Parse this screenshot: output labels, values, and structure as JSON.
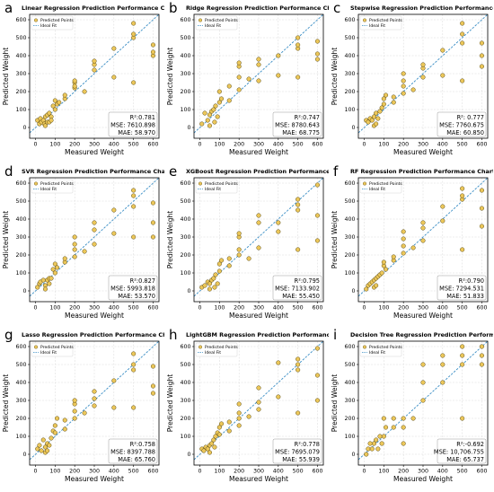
{
  "axis_labels": {
    "x": "Measured Weight",
    "y": "Predicted Weight"
  },
  "legend": {
    "points": "Predicted Points",
    "fit": "Ideal Fit"
  },
  "colors": {
    "points": "#ecc75a",
    "point_edge": "#5a4a10",
    "fit": "#3a8ec5",
    "grid": "#d9d9d9"
  },
  "chart_data": [
    {
      "id": "a",
      "type": "scatter",
      "title": "Linear Regression Prediction Performance Chart",
      "r2": "R²:0.781",
      "mse": "MSE: 7610.898",
      "mae": "MAE: 58.970",
      "xlim": [
        -30,
        630
      ],
      "ylim": [
        -60,
        630
      ],
      "xticks": [
        0,
        100,
        200,
        300,
        400,
        500,
        600
      ],
      "yticks": [
        0,
        100,
        200,
        300,
        400,
        500,
        600
      ],
      "x": [
        10,
        20,
        25,
        30,
        40,
        45,
        50,
        50,
        60,
        60,
        70,
        70,
        80,
        80,
        90,
        100,
        100,
        110,
        120,
        150,
        150,
        200,
        200,
        200,
        200,
        250,
        300,
        300,
        300,
        400,
        400,
        500,
        500,
        500,
        500,
        600,
        600,
        600
      ],
      "y": [
        40,
        20,
        50,
        30,
        40,
        20,
        60,
        10,
        70,
        30,
        80,
        30,
        60,
        40,
        120,
        100,
        150,
        130,
        140,
        160,
        180,
        220,
        250,
        230,
        260,
        200,
        320,
        350,
        370,
        440,
        280,
        500,
        520,
        580,
        250,
        460,
        400,
        420
      ]
    },
    {
      "id": "b",
      "type": "scatter",
      "title": "Ridge Regression Prediction Performance Chart",
      "r2": "R²:0.747",
      "mse": "MSE: 8780.643",
      "mae": "MAE: 68.775",
      "xlim": [
        -30,
        630
      ],
      "ylim": [
        -60,
        630
      ],
      "xticks": [
        0,
        100,
        200,
        300,
        400,
        500,
        600
      ],
      "yticks": [
        0,
        100,
        200,
        300,
        400,
        500,
        600
      ],
      "x": [
        10,
        25,
        40,
        50,
        50,
        60,
        70,
        75,
        80,
        90,
        100,
        100,
        110,
        150,
        150,
        200,
        200,
        200,
        200,
        250,
        300,
        300,
        300,
        400,
        400,
        500,
        500,
        500,
        500,
        600,
        600,
        600
      ],
      "y": [
        20,
        80,
        40,
        70,
        10,
        90,
        100,
        30,
        120,
        60,
        140,
        200,
        160,
        150,
        230,
        210,
        280,
        340,
        360,
        270,
        260,
        350,
        380,
        400,
        290,
        280,
        440,
        460,
        500,
        480,
        380,
        410
      ]
    },
    {
      "id": "c",
      "type": "scatter",
      "title": "Stepwise Regression Prediction Performance Chart",
      "r2": "R²: 0.777",
      "mse": "MSE: 7760.675",
      "mae": "MAE: 60.850",
      "xlim": [
        -30,
        630
      ],
      "ylim": [
        -60,
        630
      ],
      "xticks": [
        0,
        100,
        200,
        300,
        400,
        500,
        600
      ],
      "yticks": [
        0,
        100,
        200,
        300,
        400,
        500,
        600
      ],
      "x": [
        10,
        20,
        30,
        40,
        50,
        50,
        60,
        60,
        70,
        80,
        90,
        100,
        100,
        110,
        150,
        150,
        200,
        200,
        200,
        200,
        250,
        300,
        300,
        300,
        400,
        400,
        500,
        500,
        500,
        500,
        600,
        600,
        600
      ],
      "y": [
        40,
        30,
        50,
        40,
        60,
        10,
        80,
        20,
        50,
        90,
        110,
        130,
        160,
        180,
        140,
        170,
        190,
        230,
        260,
        300,
        210,
        280,
        330,
        350,
        430,
        290,
        260,
        470,
        520,
        580,
        470,
        400,
        340
      ]
    },
    {
      "id": "d",
      "type": "scatter",
      "title": "SVR Regression Prediction Performance Chart",
      "r2": "R²:0.827",
      "mse": "MSE: 5993.818",
      "mae": "MAE: 53.570",
      "xlim": [
        -30,
        630
      ],
      "ylim": [
        -60,
        630
      ],
      "xticks": [
        0,
        100,
        200,
        300,
        400,
        500,
        600
      ],
      "yticks": [
        0,
        100,
        200,
        300,
        400,
        500,
        600
      ],
      "x": [
        10,
        20,
        25,
        40,
        50,
        50,
        60,
        70,
        70,
        80,
        90,
        100,
        100,
        110,
        150,
        150,
        200,
        200,
        200,
        200,
        250,
        300,
        300,
        300,
        400,
        400,
        500,
        500,
        500,
        500,
        600,
        600,
        600
      ],
      "y": [
        20,
        40,
        50,
        60,
        30,
        10,
        60,
        70,
        40,
        70,
        120,
        100,
        150,
        130,
        160,
        180,
        190,
        230,
        260,
        300,
        220,
        260,
        340,
        380,
        450,
        320,
        300,
        470,
        530,
        560,
        490,
        380,
        300
      ]
    },
    {
      "id": "e",
      "type": "scatter",
      "title": "XGBoost Regression Prediction Performance Chart",
      "r2": "R²:0.795",
      "mse": "MSE: 7133.902",
      "mae": "MAE: 55.450",
      "xlim": [
        -30,
        630
      ],
      "ylim": [
        -60,
        630
      ],
      "xticks": [
        0,
        100,
        200,
        300,
        400,
        500,
        600
      ],
      "yticks": [
        0,
        100,
        200,
        300,
        400,
        500,
        600
      ],
      "x": [
        10,
        25,
        40,
        50,
        50,
        60,
        70,
        75,
        80,
        90,
        100,
        100,
        110,
        150,
        150,
        200,
        200,
        200,
        200,
        250,
        300,
        300,
        300,
        400,
        400,
        500,
        500,
        500,
        500,
        600,
        600,
        600
      ],
      "y": [
        20,
        30,
        50,
        40,
        10,
        60,
        70,
        20,
        90,
        40,
        110,
        150,
        170,
        140,
        180,
        200,
        230,
        300,
        320,
        180,
        240,
        380,
        420,
        380,
        330,
        230,
        450,
        480,
        510,
        590,
        420,
        280
      ]
    },
    {
      "id": "f",
      "type": "scatter",
      "title": "RF Regression Prediction Performance Chart",
      "r2": "R²:0.790",
      "mse": "MSE: 7294.531",
      "mae": "MAE: 51.833",
      "xlim": [
        -30,
        630
      ],
      "ylim": [
        -60,
        630
      ],
      "xticks": [
        0,
        100,
        200,
        300,
        400,
        500,
        600
      ],
      "yticks": [
        0,
        100,
        200,
        300,
        400,
        500,
        600
      ],
      "x": [
        10,
        20,
        30,
        40,
        50,
        50,
        60,
        60,
        70,
        80,
        90,
        100,
        100,
        110,
        150,
        150,
        200,
        200,
        200,
        200,
        250,
        300,
        300,
        300,
        400,
        400,
        500,
        500,
        500,
        500,
        600,
        600,
        600
      ],
      "y": [
        10,
        30,
        40,
        50,
        60,
        20,
        70,
        30,
        80,
        90,
        100,
        140,
        160,
        120,
        170,
        190,
        210,
        250,
        290,
        330,
        240,
        280,
        350,
        380,
        470,
        390,
        230,
        510,
        530,
        570,
        560,
        460,
        360
      ]
    },
    {
      "id": "g",
      "type": "scatter",
      "title": "Lasso Regression Prediction Performance Chart",
      "r2": "R²:0.758",
      "mse": "MSE: 8397.788",
      "mae": "MAE: 65.760",
      "xlim": [
        -30,
        630
      ],
      "ylim": [
        -60,
        630
      ],
      "xticks": [
        0,
        100,
        200,
        300,
        400,
        500,
        600
      ],
      "yticks": [
        0,
        100,
        200,
        300,
        400,
        500,
        600
      ],
      "x": [
        10,
        20,
        30,
        40,
        50,
        50,
        60,
        60,
        70,
        80,
        90,
        100,
        100,
        110,
        150,
        150,
        200,
        200,
        200,
        200,
        250,
        300,
        300,
        300,
        400,
        400,
        500,
        500,
        500,
        500,
        600,
        600,
        600
      ],
      "y": [
        30,
        50,
        20,
        80,
        40,
        10,
        60,
        20,
        50,
        90,
        130,
        120,
        160,
        200,
        140,
        190,
        200,
        240,
        280,
        300,
        230,
        270,
        310,
        350,
        410,
        260,
        260,
        470,
        500,
        560,
        490,
        380,
        340
      ]
    },
    {
      "id": "h",
      "type": "scatter",
      "title": "LightGBM Regression Prediction Performance Chart",
      "r2": "R²:0.778",
      "mse": "MSE: 7695.079",
      "mae": "MAE: 55.939",
      "xlim": [
        -30,
        630
      ],
      "ylim": [
        -60,
        630
      ],
      "xticks": [
        0,
        100,
        200,
        300,
        400,
        500,
        600
      ],
      "yticks": [
        0,
        100,
        200,
        300,
        400,
        500,
        600
      ],
      "x": [
        10,
        20,
        30,
        40,
        50,
        50,
        60,
        70,
        75,
        80,
        90,
        100,
        100,
        110,
        150,
        150,
        200,
        200,
        200,
        200,
        250,
        300,
        300,
        300,
        400,
        400,
        500,
        500,
        500,
        500,
        600,
        600,
        600
      ],
      "y": [
        30,
        20,
        40,
        30,
        50,
        10,
        60,
        80,
        40,
        100,
        120,
        110,
        150,
        170,
        130,
        180,
        200,
        230,
        280,
        160,
        210,
        250,
        370,
        290,
        320,
        510,
        230,
        470,
        500,
        530,
        590,
        440,
        300
      ]
    },
    {
      "id": "i",
      "type": "scatter",
      "title": "Decision Tree Regression Prediction Performance Chart",
      "r2": "R²:-0.692",
      "mse": "MSE: 10,706.755",
      "mae": "MAE: 65.737",
      "xlim": [
        -30,
        630
      ],
      "ylim": [
        -60,
        630
      ],
      "xticks": [
        0,
        100,
        200,
        300,
        400,
        500,
        600
      ],
      "yticks": [
        0,
        100,
        200,
        300,
        400,
        500,
        600
      ],
      "x": [
        10,
        20,
        30,
        40,
        50,
        60,
        70,
        80,
        90,
        100,
        100,
        110,
        150,
        150,
        200,
        200,
        200,
        250,
        300,
        300,
        300,
        400,
        400,
        400,
        500,
        500,
        500,
        500,
        600,
        600,
        600
      ],
      "y": [
        0,
        30,
        60,
        30,
        60,
        80,
        30,
        100,
        60,
        100,
        200,
        150,
        150,
        200,
        200,
        60,
        150,
        200,
        300,
        400,
        500,
        400,
        500,
        550,
        500,
        200,
        550,
        600,
        600,
        500,
        550
      ]
    }
  ]
}
